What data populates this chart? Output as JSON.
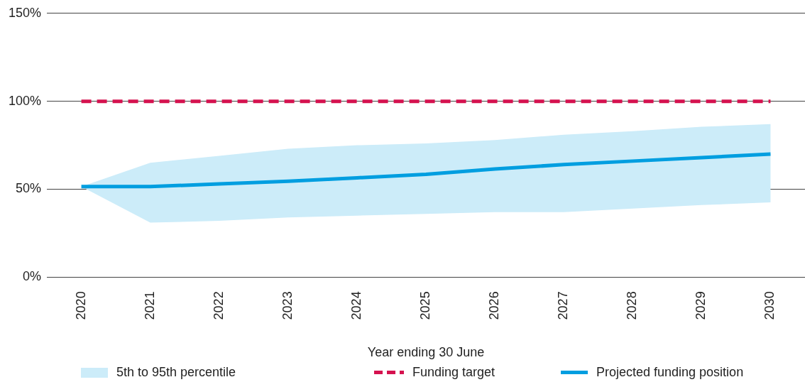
{
  "chart_data": {
    "type": "line",
    "xlabel": "Year ending 30 June",
    "categories": [
      "2020",
      "2021",
      "2022",
      "2023",
      "2024",
      "2025",
      "2026",
      "2027",
      "2028",
      "2029",
      "2030"
    ],
    "series": [
      {
        "name": "Projected funding position",
        "type": "line",
        "color": "#009ee0",
        "values": [
          51.5,
          51.5,
          53,
          54.5,
          56.5,
          58.5,
          61.5,
          64,
          66,
          68,
          70
        ],
        "lower": [
          51.5,
          31,
          32,
          34,
          35,
          36,
          37,
          37,
          39,
          41,
          42.5
        ],
        "upper": [
          51.5,
          65,
          69,
          73,
          75,
          76,
          78,
          81,
          83,
          85.5,
          87
        ]
      }
    ],
    "annotations": [
      "5th to 95th percentile"
    ],
    "ref_lines": [
      {
        "axis": "y",
        "value": 100,
        "label": "Funding target",
        "color": "#d5124f",
        "line_style": "dashed"
      }
    ],
    "ylim": [
      0,
      150
    ],
    "yticks": [
      {
        "value": 0,
        "label": "0%"
      },
      {
        "value": 50,
        "label": "50%"
      },
      {
        "value": 100,
        "label": "100%"
      },
      {
        "value": 150,
        "label": "150%"
      }
    ],
    "grid": "y",
    "legend": "bottom",
    "marker": "none"
  }
}
